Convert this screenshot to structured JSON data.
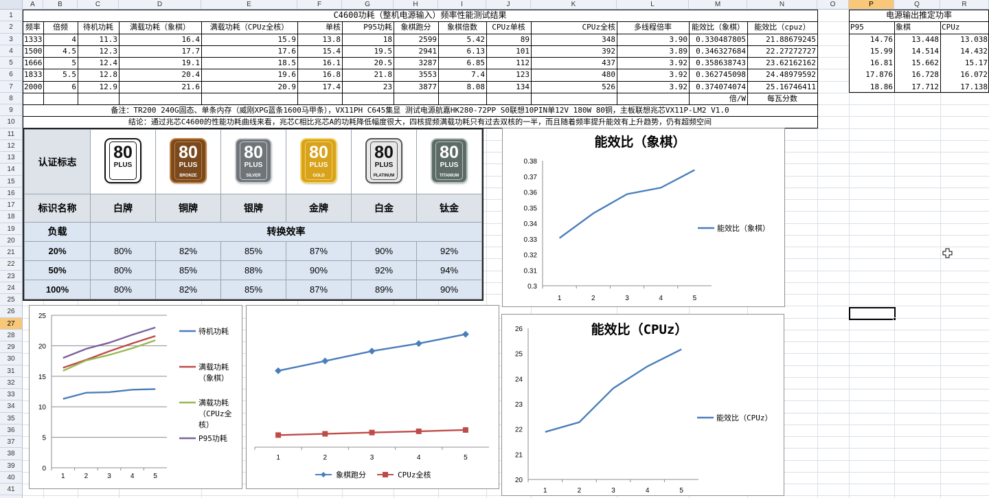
{
  "columns": [
    "A",
    "B",
    "C",
    "D",
    "E",
    "F",
    "G",
    "H",
    "I",
    "J",
    "K",
    "L",
    "M",
    "N",
    "O",
    "P",
    "Q",
    "R"
  ],
  "rows": [
    "1",
    "2",
    "3",
    "4",
    "5",
    "6",
    "7",
    "8",
    "9",
    "10",
    "11",
    "12",
    "13",
    "14",
    "15",
    "16",
    "17",
    "18",
    "19",
    "20",
    "21",
    "22",
    "23",
    "24",
    "25",
    "26",
    "27",
    "28",
    "29",
    "30",
    "31",
    "32",
    "33",
    "34",
    "35",
    "36",
    "37",
    "38",
    "39",
    "40",
    "41",
    "42"
  ],
  "title": "C4600功耗（整机电源输入）频率性能测试结果",
  "headers": [
    "频率",
    "倍频",
    "待机功耗",
    "满载功耗（象棋）",
    "满载功耗（CPUz全核）",
    "单核",
    "P95功耗",
    "象棋跑分",
    "象棋倍数",
    "CPUz单核",
    "CPUz全核",
    "多线程倍率",
    "能效比（象棋）",
    "能效比（cpuz）"
  ],
  "data_rows": [
    [
      "1333",
      "4",
      "11.3",
      "16.4",
      "15.9",
      "13.8",
      "18",
      "2599",
      "5.42",
      "89",
      "348",
      "3.90",
      "0.330487805",
      "21.88679245"
    ],
    [
      "1500",
      "4.5",
      "12.3",
      "17.7",
      "17.6",
      "15.4",
      "19.5",
      "2941",
      "6.13",
      "101",
      "392",
      "3.89",
      "0.346327684",
      "22.27272727"
    ],
    [
      "1666",
      "5",
      "12.4",
      "19.1",
      "18.5",
      "16.1",
      "20.5",
      "3287",
      "6.85",
      "112",
      "437",
      "3.92",
      "0.358638743",
      "23.62162162"
    ],
    [
      "1833",
      "5.5",
      "12.8",
      "20.4",
      "19.6",
      "16.8",
      "21.8",
      "3553",
      "7.4",
      "123",
      "480",
      "3.92",
      "0.362745098",
      "24.48979592"
    ],
    [
      "2000",
      "6",
      "12.9",
      "21.6",
      "20.9",
      "17.4",
      "23",
      "3877",
      "8.08",
      "134",
      "526",
      "3.92",
      "0.374074074",
      "25.16746411"
    ]
  ],
  "row8": {
    "m": "倍/W",
    "n": "每瓦分数"
  },
  "note": "备注：TR200 240G固态、单条内存（威刚XPG蓝条1600马甲条），VX11PH C645集显 测试电源航嘉HK280-72PP S0联想10PIN单12V 180W 80铜，主板联想兆芯VX11P-LM2 V1.0",
  "conclusion": "结论：通过兆芯C4600的性能功耗曲线来看，兆芯C相比兆芯A的功耗降低幅度很大，四核提频满载功耗只有过去双核的一半，而且随着频率提升能效有上升趋势，仍有超频空间",
  "psu": {
    "title": "电源输出推定功率",
    "headers": [
      "P95",
      "象棋",
      "CPUz"
    ],
    "rows": [
      [
        "14.76",
        "13.448",
        "13.038"
      ],
      [
        "15.99",
        "14.514",
        "14.432"
      ],
      [
        "16.81",
        "15.662",
        "15.17"
      ],
      [
        "17.876",
        "16.728",
        "16.072"
      ],
      [
        "18.86",
        "17.712",
        "17.138"
      ]
    ]
  },
  "cert": {
    "row_label_logo": "认证标志",
    "row_label_name": "标识名称",
    "row_label_load": "负载",
    "efficiency_header": "转换效率",
    "badges": [
      {
        "num": "80",
        "plus": "PLUS",
        "level": "",
        "bg": "#ffffff",
        "fg": "#111111",
        "ring": "#111111"
      },
      {
        "num": "80",
        "plus": "PLUS",
        "level": "BRONZE",
        "bg": "#7a4a1e",
        "fg": "#ffffff",
        "ring": "#c2803e"
      },
      {
        "num": "80",
        "plus": "PLUS",
        "level": "SILVER",
        "bg": "#6f7478",
        "fg": "#ffffff",
        "ring": "#c9cdd1"
      },
      {
        "num": "80",
        "plus": "PLUS",
        "level": "GOLD",
        "bg": "#d9a21b",
        "fg": "#ffffff",
        "ring": "#f5d466"
      },
      {
        "num": "80",
        "plus": "PLUS",
        "level": "PLATINUM",
        "bg": "#e8e8e8",
        "fg": "#111111",
        "ring": "#555555"
      },
      {
        "num": "80",
        "plus": "PLUS",
        "level": "TITANIUM",
        "bg": "#5d6b66",
        "fg": "#ffffff",
        "ring": "#b7c4bf"
      }
    ],
    "names": [
      "白牌",
      "铜牌",
      "银牌",
      "金牌",
      "白金",
      "钛金"
    ],
    "loads": [
      {
        "load": "20%",
        "values": [
          "80%",
          "82%",
          "85%",
          "87%",
          "90%",
          "92%"
        ]
      },
      {
        "load": "50%",
        "values": [
          "80%",
          "85%",
          "88%",
          "90%",
          "92%",
          "94%"
        ]
      },
      {
        "load": "100%",
        "values": [
          "80%",
          "82%",
          "85%",
          "87%",
          "89%",
          "90%"
        ]
      }
    ]
  },
  "chart_data": [
    {
      "type": "line",
      "title": "能效比（象棋）",
      "x": [
        "1",
        "2",
        "3",
        "4",
        "5"
      ],
      "series": [
        {
          "name": "能效比（象棋）",
          "values": [
            0.330487805,
            0.346327684,
            0.358638743,
            0.362745098,
            0.374074074
          ],
          "color": "#4a7ebb"
        }
      ],
      "ylim": [
        0.3,
        0.38
      ],
      "yticks": [
        "0.38",
        "0.37",
        "0.36",
        "0.35",
        "0.34",
        "0.33",
        "0.32",
        "0.31",
        "0.3"
      ],
      "legend": "right"
    },
    {
      "type": "line",
      "title": "能效比（CPUz）",
      "x": [
        "1",
        "2",
        "3",
        "4",
        "5"
      ],
      "series": [
        {
          "name": "能效比（CPUz）",
          "values": [
            21.88679245,
            22.27272727,
            23.62162162,
            24.48979592,
            25.16746411
          ],
          "color": "#4a7ebb"
        }
      ],
      "ylim": [
        20,
        26
      ],
      "yticks": [
        "26",
        "25",
        "24",
        "23",
        "22",
        "21",
        "20"
      ],
      "legend": "right"
    },
    {
      "type": "line",
      "title": "",
      "x": [
        "1",
        "2",
        "3",
        "4",
        "5"
      ],
      "series": [
        {
          "name": "待机功耗",
          "values": [
            11.3,
            12.3,
            12.4,
            12.8,
            12.9
          ],
          "color": "#4a7ebb"
        },
        {
          "name": "满载功耗（象棋）",
          "values": [
            16.4,
            17.7,
            19.1,
            20.4,
            21.6
          ],
          "color": "#be4b48"
        },
        {
          "name": "满载功耗（CPUz全核）",
          "values": [
            15.9,
            17.6,
            18.5,
            19.6,
            20.9
          ],
          "color": "#98b954"
        },
        {
          "name": "P95功耗",
          "values": [
            18,
            19.5,
            20.5,
            21.8,
            23
          ],
          "color": "#7d60a0"
        }
      ],
      "ylim": [
        0,
        25
      ],
      "yticks": [
        "25",
        "20",
        "15",
        "10",
        "5",
        "0"
      ],
      "legend": "right",
      "legend_lines": [
        [
          "待机功耗"
        ],
        [
          "满载功耗",
          "（象棋）"
        ],
        [
          "满载功耗",
          "（CPUz全",
          "核）"
        ],
        [
          "P95功耗"
        ]
      ]
    },
    {
      "type": "line",
      "title": "",
      "x": [
        "1",
        "2",
        "3",
        "4",
        "5"
      ],
      "series": [
        {
          "name": "象棋跑分",
          "values": [
            2599,
            2941,
            3287,
            3553,
            3877
          ],
          "color": "#4a7ebb",
          "marker": "diamond"
        },
        {
          "name": "CPUz全核",
          "values": [
            348,
            392,
            437,
            480,
            526
          ],
          "color": "#be4b48",
          "marker": "square"
        }
      ],
      "legend": "bottom"
    }
  ]
}
